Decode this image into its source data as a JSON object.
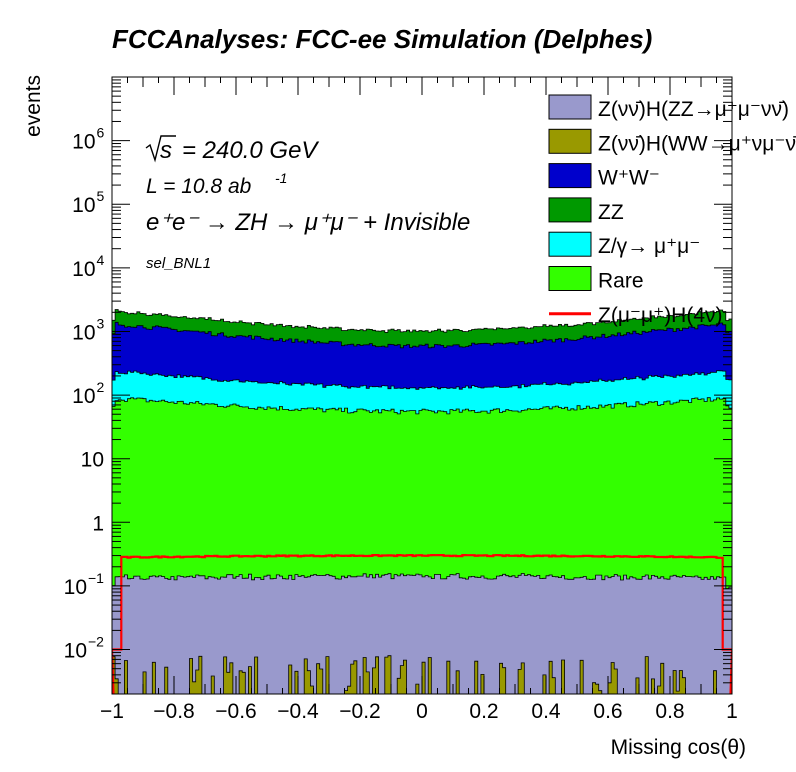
{
  "chart_data": {
    "type": "area",
    "title": "FCCAnalyses: FCC-ee Simulation (Delphes)",
    "xlabel": "Missing cos(θ)",
    "ylabel": "events",
    "xlim": [
      -1,
      1
    ],
    "ylim": [
      0.002,
      10000000
    ],
    "log_y": true,
    "grid": false,
    "x_ticks": [
      "−1",
      "−0.8",
      "−0.6",
      "−0.4",
      "−0.2",
      "0",
      "0.2",
      "0.4",
      "0.6",
      "0.8",
      "1"
    ],
    "y_ticks": [
      {
        "value": 0.01,
        "base": "10",
        "exp": "−2"
      },
      {
        "value": 0.1,
        "base": "10",
        "exp": "−1"
      },
      {
        "value": 1,
        "base": "1",
        "exp": ""
      },
      {
        "value": 10,
        "base": "10",
        "exp": ""
      },
      {
        "value": 100,
        "base": "10",
        "exp": "2"
      },
      {
        "value": 1000,
        "base": "10",
        "exp": "3"
      },
      {
        "value": 10000,
        "base": "10",
        "exp": "4"
      },
      {
        "value": 100000,
        "base": "10",
        "exp": "5"
      },
      {
        "value": 1000000,
        "base": "10",
        "exp": "6"
      }
    ],
    "annotations": {
      "sqrt_s": "= 240.0 GeV",
      "lumi": "L = 10.8 ab",
      "lumi_exp": "-1",
      "process": "e⁺e⁻ → ZH → μ⁺μ⁻ + Invisible",
      "selection": "sel_BNL1"
    },
    "legend_position": "top-right",
    "stack_order": "bottom-to-top",
    "series": [
      {
        "name": "Z(νν̄)H(WW→μ⁺νμ⁻ν̄)",
        "color": "#999900",
        "kind": "stack",
        "edge_value": 0.002,
        "center_value": 0.004
      },
      {
        "name": "Z(νν̄)H(ZZ→μ⁺μ⁻νν̄)",
        "color": "#9999cc",
        "kind": "stack",
        "edge_value": 0.13,
        "center_value": 0.14
      },
      {
        "name": "Rare",
        "color": "#33ff00",
        "kind": "stack",
        "edge_value": 90,
        "center_value": 55
      },
      {
        "name": "Z/γ→ μ⁺μ⁻",
        "color": "#00ffff",
        "kind": "stack",
        "edge_value": 150,
        "center_value": 75
      },
      {
        "name": "W⁺W⁻",
        "color": "#0000cc",
        "kind": "stack",
        "edge_value": 1100,
        "center_value": 460
      },
      {
        "name": "ZZ",
        "color": "#009900",
        "kind": "stack",
        "edge_value": 800,
        "center_value": 430
      },
      {
        "name": "Z(μ⁻μ⁺)H(4ν)",
        "color": "#ff0000",
        "kind": "line",
        "edge_value": 0.28,
        "center_value": 0.3
      }
    ],
    "legend_order": [
      "Z(νν̄)H(ZZ→μ⁺μ⁻νν̄)",
      "Z(νν̄)H(WW→μ⁺νμ⁻ν̄)",
      "W⁺W⁻",
      "ZZ",
      "Z/γ→ μ⁺μ⁻",
      "Rare",
      "Z(μ⁻μ⁺)H(4ν)"
    ]
  }
}
